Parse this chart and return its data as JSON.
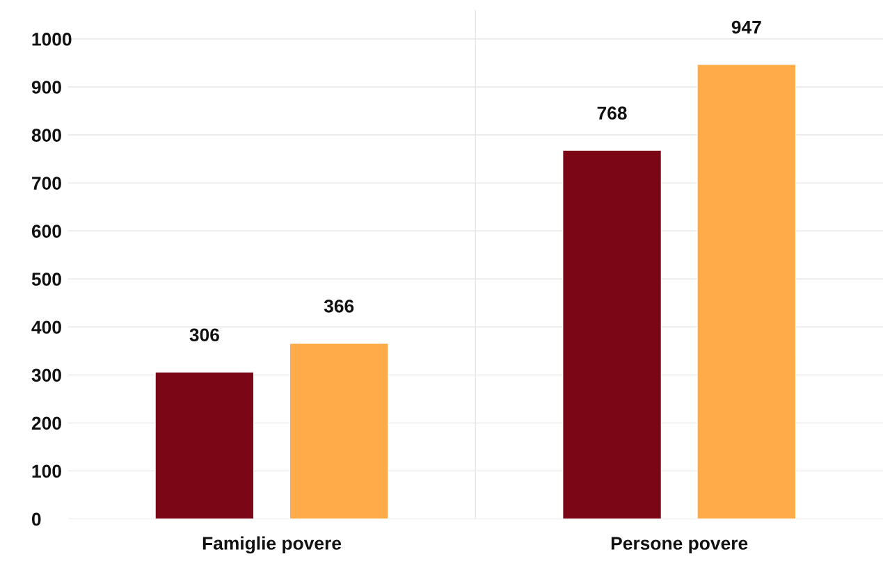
{
  "chart_data": {
    "type": "bar",
    "categories": [
      "Famiglie povere",
      "Persone povere"
    ],
    "series": [
      {
        "color": "#7a0616",
        "values": [
          306,
          768
        ]
      },
      {
        "color": "#ffab4a",
        "values": [
          366,
          947
        ]
      }
    ],
    "ylim": [
      0,
      1060
    ],
    "yticks": [
      0,
      100,
      200,
      300,
      400,
      500,
      600,
      700,
      800,
      900,
      1000
    ],
    "grid": true,
    "data_labels": true,
    "legend": false
  }
}
